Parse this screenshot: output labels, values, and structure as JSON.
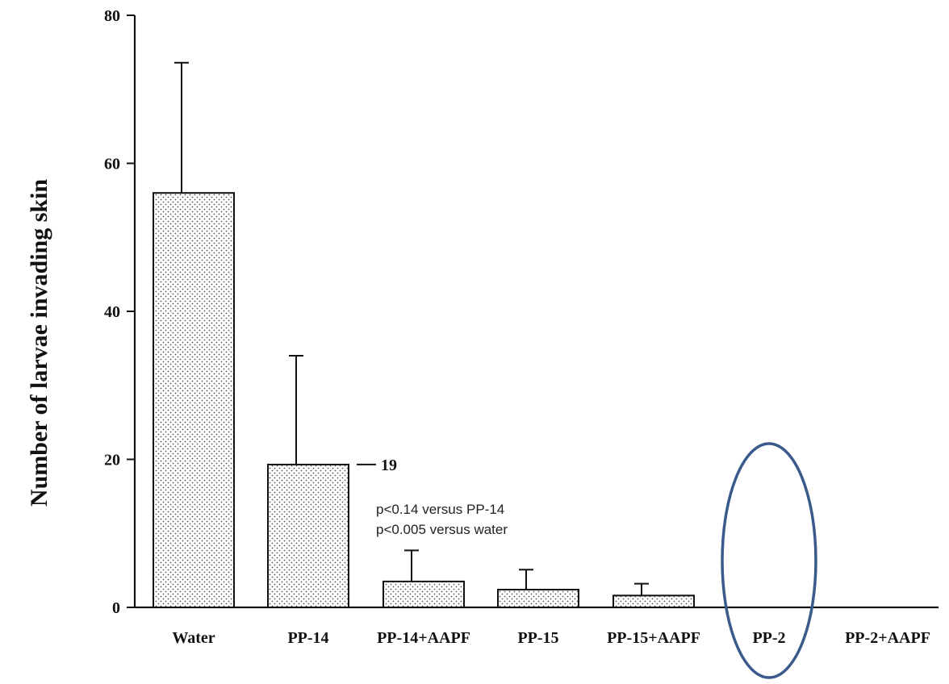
{
  "chart_data": {
    "type": "bar",
    "title": "",
    "xlabel": "",
    "ylabel": "Number of larvae invading skin",
    "ylim": [
      0,
      80
    ],
    "yticks": [
      0,
      20,
      40,
      60,
      80
    ],
    "categories": [
      "Water",
      "PP-14",
      "PP-14+AAPF",
      "PP-15",
      "PP-15+AAPF",
      "PP-2",
      "PP-2+AAPF"
    ],
    "values": [
      56,
      19.3,
      3.5,
      2.4,
      1.6,
      0,
      0
    ],
    "error_upper": [
      73.6,
      34,
      7.7,
      5.1,
      3.2,
      0,
      0
    ],
    "grid": false,
    "bar_fill": "stippled",
    "annotations": {
      "value_label": "19",
      "stats_line1": "p<0.14 versus PP-14",
      "stats_line2": "p<0.005 versus water"
    },
    "highlight": {
      "category": "PP-2",
      "shape": "ellipse",
      "color": "#3a5a8c"
    }
  }
}
